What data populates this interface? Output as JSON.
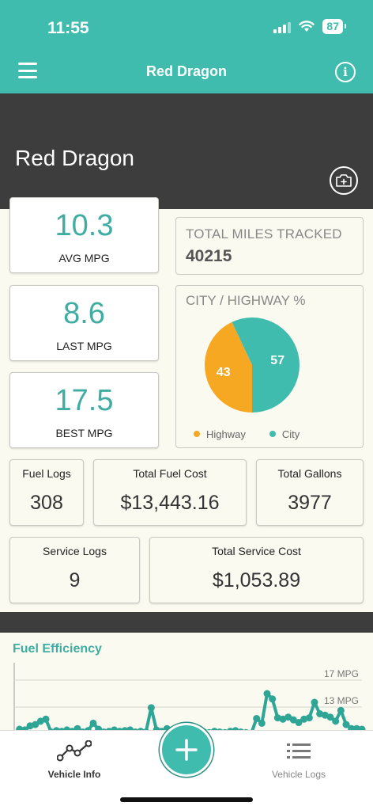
{
  "status": {
    "time": "11:55",
    "battery": "87"
  },
  "header": {
    "title": "Red Dragon"
  },
  "vehicle": {
    "name": "Red Dragon"
  },
  "stats": {
    "avg_mpg": {
      "value": "10.3",
      "label": "AVG MPG"
    },
    "last_mpg": {
      "value": "8.6",
      "label": "LAST MPG"
    },
    "best_mpg": {
      "value": "17.5",
      "label": "BEST MPG"
    },
    "total_miles": {
      "label": "TOTAL MILES TRACKED",
      "value": "40215"
    },
    "fuel_logs": {
      "label": "Fuel Logs",
      "value": "308"
    },
    "total_fuel_cost": {
      "label": "Total Fuel Cost",
      "value": "$13,443.16"
    },
    "total_gallons": {
      "label": "Total Gallons",
      "value": "3977"
    },
    "service_logs": {
      "label": "Service Logs",
      "value": "9"
    },
    "total_service_cost": {
      "label": "Total Service Cost",
      "value": "$1,053.89"
    }
  },
  "pie": {
    "title": "CITY / HIGHWAY %",
    "highway": {
      "label": "Highway",
      "value": 43,
      "display": "43",
      "color": "#f7a823"
    },
    "city": {
      "label": "City",
      "value": 57,
      "display": "57",
      "color": "#3fbcad"
    }
  },
  "chart_data": {
    "type": "line",
    "title": "Fuel Efficiency",
    "y_ticks": [
      "17 MPG",
      "13 MPG"
    ],
    "y_tick_values": [
      17,
      13
    ],
    "series": [
      {
        "values": [
          9,
          9.7,
          9.6,
          10.2,
          10.4,
          10.9,
          11.2,
          9.3,
          9.5,
          9.4,
          9.6,
          9.4,
          9.8,
          9.3,
          9.5,
          10.6,
          9.7,
          9.3,
          9.4,
          9.6,
          9.4,
          9.5,
          9.6,
          9.3,
          9.4,
          9.3,
          12.9,
          9.6,
          9.4,
          9.8,
          9.5,
          9.4,
          9.7,
          9.3,
          9.5,
          9.4,
          9.3,
          9.2,
          9.4,
          9.3,
          9.2,
          9.4,
          9.5,
          9.3,
          9.2,
          9.1,
          11.3,
          10.6,
          15,
          14.2,
          11.4,
          11.2,
          11.5,
          11.1,
          10.7,
          11.2,
          11.4,
          13.7,
          12,
          11.8,
          11.5,
          10.9,
          12.5,
          10.4,
          9.8,
          9.8,
          9.7
        ]
      }
    ],
    "color": "#2fa596"
  },
  "tabs": {
    "vehicle_info": "Vehicle Info",
    "vehicle_logs": "Vehicle Logs"
  }
}
